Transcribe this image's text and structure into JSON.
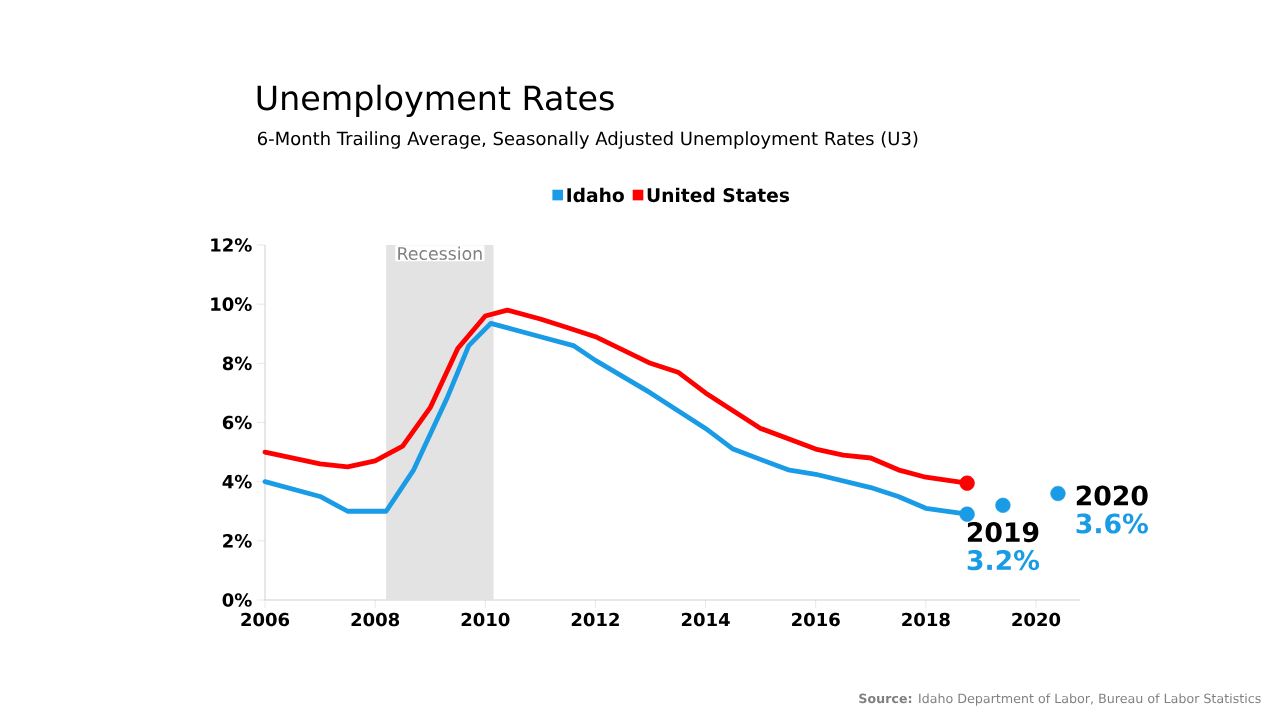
{
  "chart_data": {
    "type": "line",
    "title": "Unemployment Rates",
    "subtitle": "6-Month Trailing Average, Seasonally Adjusted Unemployment Rates (U3)",
    "series": [
      {
        "name": "Idaho",
        "color": "#1a9be6",
        "x": [
          2006,
          2007,
          2007.5,
          2008.2,
          2008.7,
          2009.3,
          2009.7,
          2010.1,
          2011,
          2011.6,
          2012,
          2013,
          2014,
          2014.5,
          2015.5,
          2016,
          2017,
          2017.5,
          2018,
          2018.75
        ],
        "values": [
          4.0,
          3.5,
          3.0,
          3.0,
          4.4,
          6.8,
          8.6,
          9.35,
          8.9,
          8.6,
          8.1,
          7.0,
          5.8,
          5.1,
          4.4,
          4.25,
          3.8,
          3.5,
          3.1,
          2.9
        ]
      },
      {
        "name": "United States",
        "color": "#ff0000",
        "x": [
          2006,
          2007,
          2007.5,
          2008,
          2008.5,
          2009,
          2009.5,
          2010,
          2010.4,
          2011,
          2011.5,
          2012,
          2013,
          2013.5,
          2014,
          2014.5,
          2015,
          2016,
          2016.5,
          2017,
          2017.5,
          2018,
          2018.75
        ],
        "values": [
          5.0,
          4.6,
          4.5,
          4.7,
          5.2,
          6.5,
          8.5,
          9.6,
          9.8,
          9.5,
          9.2,
          8.9,
          8.0,
          7.7,
          7.0,
          6.4,
          5.8,
          5.1,
          4.9,
          4.8,
          4.4,
          4.15,
          3.95
        ]
      },
      {
        "type": "scatter",
        "color": "#1a9be6",
        "x": [
          2018.75,
          2019.4,
          2020.4
        ],
        "values": [
          2.9,
          3.2,
          3.6
        ],
        "value_labels": [
          null,
          "3.2%",
          "3.6%"
        ]
      },
      {
        "type": "scatter",
        "color": "#ff0000",
        "x": [
          2018.75
        ],
        "values": [
          3.95
        ]
      }
    ],
    "xlim": [
      2006,
      2020.8
    ],
    "ylim": [
      0,
      12
    ],
    "xticks": [
      2006,
      2008,
      2010,
      2012,
      2014,
      2016,
      2018,
      2020
    ],
    "yticks": [
      {
        "value": 0,
        "label": "0%"
      },
      {
        "value": 2,
        "label": "2%"
      },
      {
        "value": 4,
        "label": "4%"
      },
      {
        "value": 6,
        "label": "6%"
      },
      {
        "value": 8,
        "label": "8%"
      },
      {
        "value": 10,
        "label": "10%"
      },
      {
        "value": 12,
        "label": "12%"
      }
    ],
    "bands": [
      {
        "axis": "x",
        "from": 2008.2,
        "to": 2010.15,
        "label": "Recession",
        "color": "#e3e3e3"
      }
    ],
    "annotations": [
      {
        "text": "2019",
        "x": 2019.4,
        "y": 3.2
      },
      {
        "text": "2020",
        "x": 2020.4,
        "y": 3.6
      },
      "**Source:** Idaho Department of Labor, Bureau of Labor Statistics"
    ],
    "legend": "top",
    "grid": false
  }
}
